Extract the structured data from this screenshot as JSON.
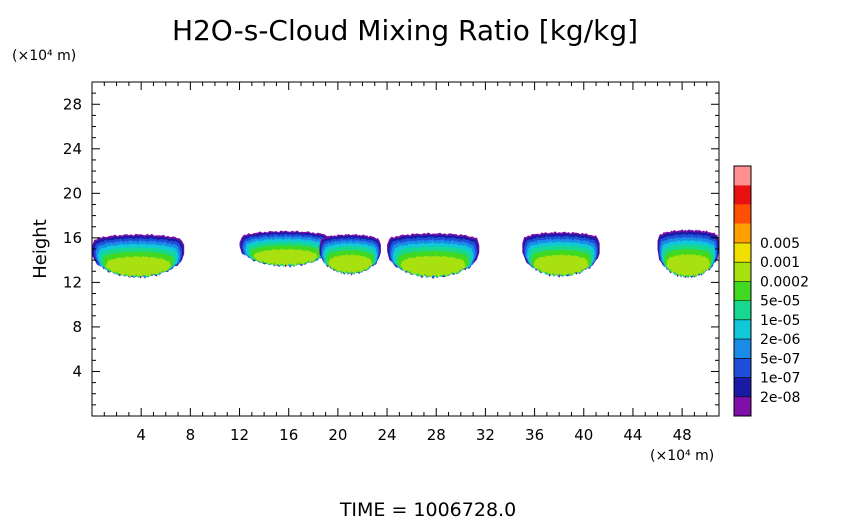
{
  "chart_data": {
    "type": "heatmap",
    "title": "H2O-s-Cloud Mixing Ratio [kg/kg]",
    "ylabel": "Height",
    "y_unit": "(×10⁴ m)",
    "x_unit": "(×10⁴ m)",
    "footer": "TIME  =  1006728.0",
    "xlim": [
      0,
      51
    ],
    "ylim": [
      0,
      30
    ],
    "x_ticks": [
      4,
      8,
      12,
      16,
      20,
      24,
      28,
      32,
      36,
      40,
      44,
      48
    ],
    "y_ticks": [
      4,
      8,
      12,
      16,
      20,
      24,
      28
    ],
    "grid": false,
    "legend_position": "right",
    "colorbar": {
      "levels": [
        "2e-08",
        "1e-07",
        "5e-07",
        "2e-06",
        "1e-05",
        "5e-05",
        "0.0002",
        "0.001",
        "0.005"
      ],
      "colors": [
        "#7f0fa8",
        "#1a1aa6",
        "#1f4fd8",
        "#1a8ce8",
        "#10c8d8",
        "#18d890",
        "#40d820",
        "#a8e010",
        "#f0e000",
        "#ffa000",
        "#ff5000",
        "#e81010",
        "#ff9090"
      ]
    },
    "cloud_cells": [
      {
        "x": [
          0.0,
          7.5
        ],
        "top": 16.3,
        "base": 12.5,
        "max_level": "5e-05"
      },
      {
        "x": [
          12.0,
          19.5
        ],
        "top": 16.6,
        "base": 13.5,
        "max_level": "5e-05"
      },
      {
        "x": [
          18.5,
          23.5
        ],
        "top": 16.3,
        "base": 12.8,
        "max_level": "5e-05"
      },
      {
        "x": [
          24.0,
          31.5
        ],
        "top": 16.4,
        "base": 12.5,
        "max_level": "5e-05"
      },
      {
        "x": [
          35.0,
          41.3
        ],
        "top": 16.5,
        "base": 12.6,
        "max_level": "5e-05"
      },
      {
        "x": [
          46.0,
          51.0
        ],
        "top": 16.7,
        "base": 12.5,
        "max_level": "5e-05"
      }
    ]
  }
}
